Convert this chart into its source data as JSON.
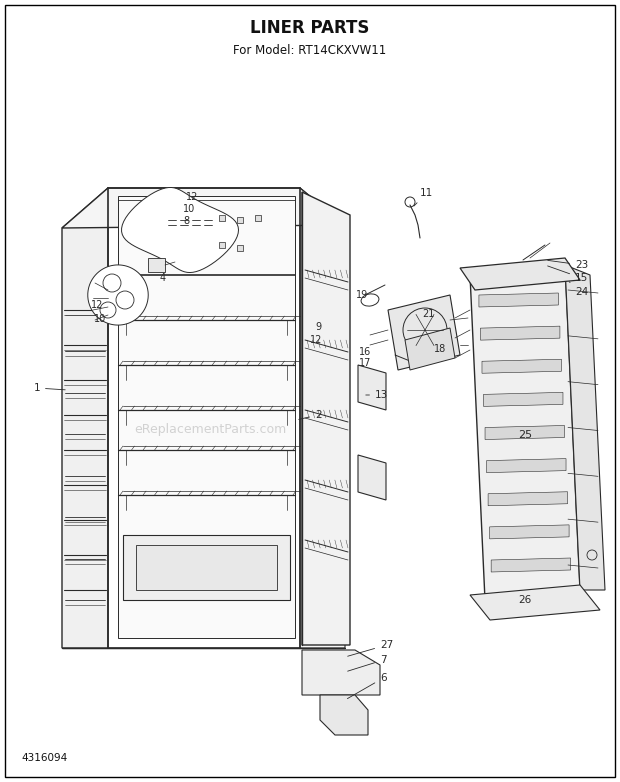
{
  "title": "LINER PARTS",
  "subtitle": "For Model: RT14CKXVW11",
  "footer": "4316094",
  "bg": "#ffffff",
  "lc": "#2a2a2a",
  "fig_w": 6.2,
  "fig_h": 7.82,
  "dpi": 100,
  "wm": "eReplacementParts.com"
}
